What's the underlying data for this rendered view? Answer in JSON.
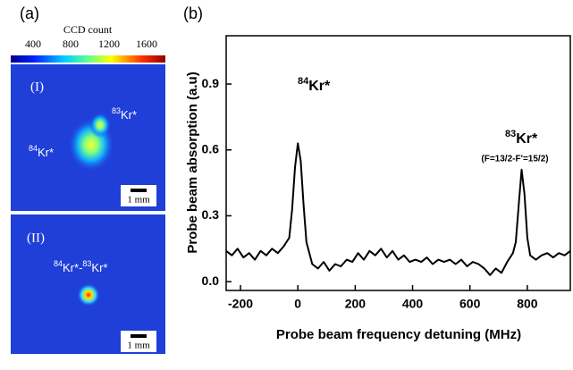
{
  "panel_a": {
    "label": "(a)",
    "colorbar_title": "CCD count",
    "colorbar_ticks": [
      400,
      800,
      1200,
      1600
    ],
    "images": [
      {
        "label": "(I)",
        "annotations": [
          {
            "parts": [
              {
                "sup": "83",
                "base": "Kr*"
              }
            ]
          },
          {
            "parts": [
              {
                "sup": "84",
                "base": "Kr*"
              }
            ]
          }
        ],
        "scale_bar": "1 mm"
      },
      {
        "label": "(II)",
        "annotations": [
          {
            "parts": [
              {
                "sup": "84",
                "base": "Kr*-"
              },
              {
                "sup": "83",
                "base": "Kr*"
              }
            ]
          }
        ],
        "scale_bar": "1 mm"
      }
    ]
  },
  "chart_data": {
    "type": "line",
    "label": "(b)",
    "x_label": "Probe beam frequency detuning (MHz)",
    "y_label": "Probe beam absorption (a.u)",
    "annotations": [
      {
        "parts": [
          {
            "sup": "84",
            "base": "Kr*"
          }
        ]
      },
      {
        "parts": [
          {
            "sup": "83",
            "base": "Kr*"
          }
        ],
        "note": "(F=13/2-F'=15/2)"
      }
    ],
    "color": "#000000",
    "x": [
      -250,
      -230,
      -210,
      -190,
      -170,
      -150,
      -130,
      -110,
      -90,
      -70,
      -50,
      -30,
      -20,
      -10,
      0,
      10,
      20,
      30,
      50,
      70,
      90,
      110,
      130,
      150,
      170,
      190,
      210,
      230,
      250,
      270,
      290,
      310,
      330,
      350,
      370,
      390,
      410,
      430,
      450,
      470,
      490,
      510,
      530,
      550,
      570,
      590,
      610,
      630,
      650,
      670,
      690,
      710,
      730,
      750,
      760,
      770,
      780,
      790,
      800,
      810,
      830,
      850,
      870,
      890,
      910,
      930,
      950
    ],
    "values": [
      0.14,
      0.12,
      0.15,
      0.11,
      0.13,
      0.1,
      0.14,
      0.12,
      0.15,
      0.13,
      0.16,
      0.2,
      0.33,
      0.52,
      0.63,
      0.55,
      0.35,
      0.18,
      0.08,
      0.06,
      0.09,
      0.05,
      0.08,
      0.07,
      0.1,
      0.09,
      0.13,
      0.1,
      0.14,
      0.12,
      0.15,
      0.11,
      0.14,
      0.1,
      0.12,
      0.09,
      0.1,
      0.09,
      0.11,
      0.08,
      0.1,
      0.09,
      0.1,
      0.08,
      0.1,
      0.07,
      0.09,
      0.08,
      0.06,
      0.03,
      0.06,
      0.04,
      0.09,
      0.13,
      0.18,
      0.35,
      0.51,
      0.4,
      0.2,
      0.12,
      0.1,
      0.12,
      0.13,
      0.11,
      0.13,
      0.12,
      0.14
    ],
    "xlim": [
      -250,
      950
    ],
    "xticks": [
      -200,
      0,
      200,
      400,
      600,
      800
    ],
    "ylim": [
      -0.04,
      1.12
    ],
    "yticks": [
      {
        "value": 0,
        "label": "0.0"
      },
      0.3,
      0.6,
      0.9
    ]
  }
}
